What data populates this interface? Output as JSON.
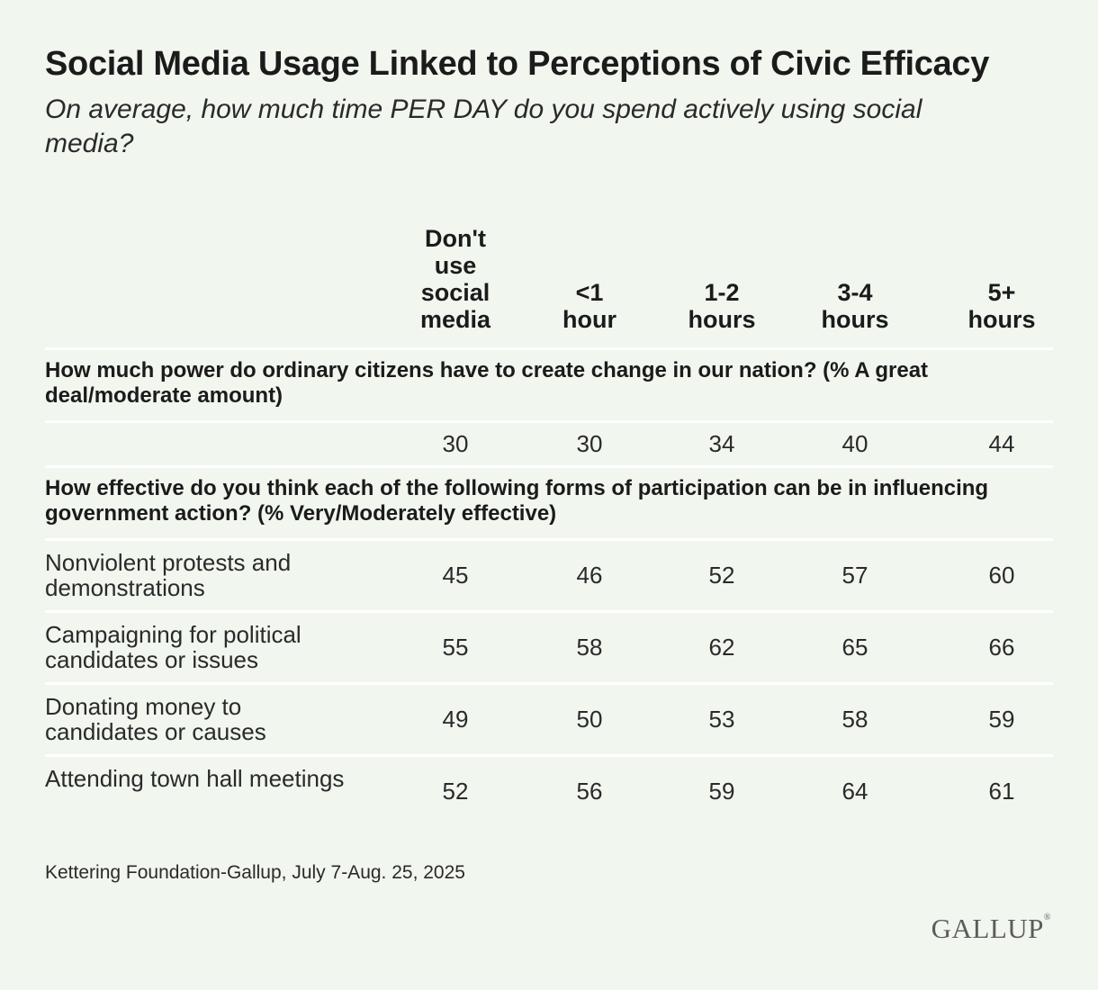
{
  "title": "Social Media Usage Linked to Perceptions of Civic Efficacy",
  "subtitle": "On average, how much time PER DAY do you spend actively using social media?",
  "source": "Kettering Foundation-Gallup, July 7-Aug. 25, 2025",
  "logo": "GALLUP",
  "chart_data": {
    "type": "table",
    "columns": [
      "Don't\nuse\nsocial\nmedia",
      "<1\nhour",
      "1-2\nhours",
      "3-4\nhours",
      "5+\nhours"
    ],
    "sections": [
      {
        "question": "How much power do ordinary citizens have to create change in our nation? (% A great deal/moderate amount)",
        "rows": [
          {
            "label": "",
            "values": [
              30,
              30,
              34,
              40,
              44
            ]
          }
        ]
      },
      {
        "question": "How effective do you think each of the following forms of participation can be in influencing government action? (% Very/Moderately effective)",
        "rows": [
          {
            "label": "Nonviolent protests and demonstrations",
            "values": [
              45,
              46,
              52,
              57,
              60
            ]
          },
          {
            "label": "Campaigning for political candidates or issues",
            "values": [
              55,
              58,
              62,
              65,
              66
            ]
          },
          {
            "label": "Donating money to candidates or causes",
            "values": [
              49,
              50,
              53,
              58,
              59
            ]
          },
          {
            "label": "Attending town hall meetings",
            "values": [
              52,
              56,
              59,
              64,
              61
            ]
          }
        ]
      }
    ]
  }
}
